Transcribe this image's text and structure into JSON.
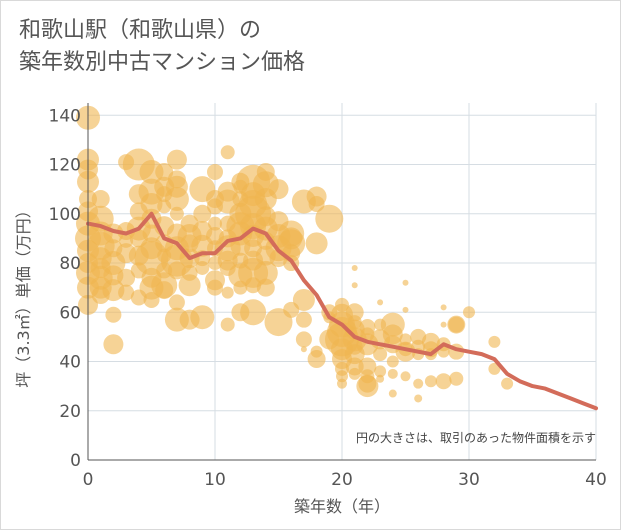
{
  "header": {
    "title_line1": "和歌山駅（和歌山県）の",
    "title_line2": "築年数別中古マンション価格"
  },
  "chart_data": {
    "type": "scatter",
    "title": "和歌山駅（和歌山県）の 築年数別中古マンション価格",
    "xlabel": "築年数（年）",
    "ylabel": "坪（3.3㎡）単価（万円）",
    "xlim": [
      0,
      40
    ],
    "ylim": [
      0,
      145
    ],
    "xticks": [
      0,
      10,
      20,
      30,
      40
    ],
    "yticks": [
      0,
      20,
      40,
      60,
      80,
      100,
      120,
      140
    ],
    "grid": true,
    "note": "円の大きさは、取引のあった物件面積を示す",
    "bubble_color": "#f0b650",
    "line_color": "#d36c5a",
    "bubbles": [
      [
        0,
        139,
        12
      ],
      [
        0,
        122,
        11
      ],
      [
        0,
        118,
        10
      ],
      [
        0,
        113,
        11
      ],
      [
        0,
        106,
        9
      ],
      [
        0,
        101,
        10
      ],
      [
        0,
        96,
        12
      ],
      [
        0,
        90,
        13
      ],
      [
        0,
        85,
        11
      ],
      [
        0,
        80,
        10
      ],
      [
        0,
        76,
        12
      ],
      [
        0,
        70,
        11
      ],
      [
        0,
        63,
        10
      ],
      [
        1,
        98,
        13
      ],
      [
        1,
        92,
        12
      ],
      [
        1,
        87,
        14
      ],
      [
        1,
        82,
        11
      ],
      [
        1,
        78,
        10
      ],
      [
        1,
        74,
        12
      ],
      [
        1,
        70,
        11
      ],
      [
        1,
        67,
        9
      ],
      [
        1,
        106,
        9
      ],
      [
        2,
        92,
        10
      ],
      [
        2,
        86,
        9
      ],
      [
        2,
        80,
        12
      ],
      [
        2,
        75,
        10
      ],
      [
        2,
        69,
        11
      ],
      [
        2,
        59,
        8
      ],
      [
        2,
        47,
        10
      ],
      [
        3,
        121,
        8
      ],
      [
        3,
        93,
        9
      ],
      [
        3,
        89,
        7
      ],
      [
        3,
        84,
        10
      ],
      [
        3,
        74,
        9
      ],
      [
        3,
        68,
        8
      ],
      [
        4,
        120,
        16
      ],
      [
        4,
        108,
        10
      ],
      [
        4,
        101,
        9
      ],
      [
        4,
        94,
        12
      ],
      [
        4,
        90,
        9
      ],
      [
        4,
        83,
        10
      ],
      [
        4,
        77,
        8
      ],
      [
        4,
        66,
        8
      ],
      [
        5,
        117,
        12
      ],
      [
        5,
        109,
        13
      ],
      [
        5,
        104,
        11
      ],
      [
        5,
        98,
        10
      ],
      [
        5,
        92,
        9
      ],
      [
        5,
        86,
        11
      ],
      [
        5,
        82,
        17
      ],
      [
        5,
        74,
        10
      ],
      [
        5,
        70,
        12
      ],
      [
        5,
        65,
        8
      ],
      [
        6,
        117,
        9
      ],
      [
        6,
        111,
        10
      ],
      [
        6,
        108,
        8
      ],
      [
        6,
        103,
        7
      ],
      [
        6,
        95,
        10
      ],
      [
        6,
        88,
        9
      ],
      [
        6,
        83,
        7
      ],
      [
        6,
        77,
        8
      ],
      [
        6,
        71,
        13
      ],
      [
        6,
        69,
        9
      ],
      [
        7,
        122,
        10
      ],
      [
        7,
        114,
        9
      ],
      [
        7,
        111,
        11
      ],
      [
        7,
        106,
        12
      ],
      [
        7,
        100,
        7
      ],
      [
        7,
        92,
        10
      ],
      [
        7,
        86,
        12
      ],
      [
        7,
        81,
        16
      ],
      [
        7,
        77,
        9
      ],
      [
        7,
        64,
        8
      ],
      [
        7,
        57,
        12
      ],
      [
        8,
        96,
        9
      ],
      [
        8,
        91,
        12
      ],
      [
        8,
        88,
        9
      ],
      [
        8,
        82,
        10
      ],
      [
        8,
        76,
        8
      ],
      [
        8,
        71,
        11
      ],
      [
        8,
        57,
        10
      ],
      [
        9,
        110,
        13
      ],
      [
        9,
        100,
        9
      ],
      [
        9,
        93,
        10
      ],
      [
        9,
        87,
        11
      ],
      [
        9,
        82,
        8
      ],
      [
        9,
        78,
        7
      ],
      [
        9,
        58,
        12
      ],
      [
        10,
        117,
        8
      ],
      [
        10,
        106,
        9
      ],
      [
        10,
        103,
        8
      ],
      [
        10,
        96,
        7
      ],
      [
        10,
        91,
        9
      ],
      [
        10,
        86,
        8
      ],
      [
        10,
        80,
        7
      ],
      [
        10,
        73,
        10
      ],
      [
        10,
        70,
        8
      ],
      [
        11,
        125,
        7
      ],
      [
        11,
        109,
        10
      ],
      [
        11,
        105,
        12
      ],
      [
        11,
        96,
        8
      ],
      [
        11,
        90,
        9
      ],
      [
        11,
        86,
        13
      ],
      [
        11,
        81,
        10
      ],
      [
        11,
        78,
        8
      ],
      [
        11,
        68,
        6
      ],
      [
        11,
        55,
        7
      ],
      [
        12,
        113,
        9
      ],
      [
        12,
        111,
        7
      ],
      [
        12,
        106,
        8
      ],
      [
        12,
        100,
        11
      ],
      [
        12,
        95,
        14
      ],
      [
        12,
        92,
        12
      ],
      [
        12,
        87,
        10
      ],
      [
        12,
        81,
        8
      ],
      [
        12,
        75,
        12
      ],
      [
        12,
        70,
        7
      ],
      [
        12,
        60,
        9
      ],
      [
        13,
        113,
        17
      ],
      [
        13,
        108,
        12
      ],
      [
        13,
        104,
        14
      ],
      [
        13,
        100,
        18
      ],
      [
        13,
        95,
        13
      ],
      [
        13,
        91,
        11
      ],
      [
        13,
        86,
        9
      ],
      [
        13,
        81,
        10
      ],
      [
        13,
        76,
        15
      ],
      [
        13,
        71,
        8
      ],
      [
        13,
        60,
        13
      ],
      [
        14,
        117,
        9
      ],
      [
        14,
        112,
        13
      ],
      [
        14,
        106,
        11
      ],
      [
        14,
        99,
        10
      ],
      [
        14,
        94,
        12
      ],
      [
        14,
        89,
        9
      ],
      [
        14,
        83,
        10
      ],
      [
        14,
        76,
        12
      ],
      [
        14,
        70,
        9
      ],
      [
        15,
        110,
        10
      ],
      [
        15,
        97,
        10
      ],
      [
        15,
        91,
        12
      ],
      [
        15,
        86,
        13
      ],
      [
        15,
        82,
        9
      ],
      [
        15,
        56,
        14
      ],
      [
        16,
        92,
        13
      ],
      [
        16,
        90,
        11
      ],
      [
        16,
        88,
        14
      ],
      [
        16,
        84,
        9
      ],
      [
        16,
        80,
        8
      ],
      [
        16,
        61,
        8
      ],
      [
        17,
        105,
        12
      ],
      [
        17,
        65,
        11
      ],
      [
        17,
        57,
        8
      ],
      [
        17,
        49,
        8
      ],
      [
        17,
        45,
        3
      ],
      [
        18,
        107,
        10
      ],
      [
        18,
        104,
        8
      ],
      [
        18,
        88,
        11
      ],
      [
        18,
        44,
        6
      ],
      [
        18,
        41,
        9
      ],
      [
        19,
        98,
        14
      ],
      [
        19,
        60,
        8
      ],
      [
        19,
        58,
        6
      ],
      [
        19,
        49,
        10
      ],
      [
        20,
        63,
        7
      ],
      [
        20,
        59,
        11
      ],
      [
        20,
        55,
        13
      ],
      [
        20,
        52,
        15
      ],
      [
        20,
        49,
        17
      ],
      [
        20,
        45,
        11
      ],
      [
        20,
        41,
        10
      ],
      [
        20,
        37,
        7
      ],
      [
        20,
        34,
        6
      ],
      [
        20,
        31,
        5
      ],
      [
        21,
        78,
        3
      ],
      [
        21,
        71,
        3
      ],
      [
        21,
        60,
        9
      ],
      [
        21,
        56,
        7
      ],
      [
        21,
        53,
        10
      ],
      [
        21,
        49,
        12
      ],
      [
        21,
        46,
        8
      ],
      [
        21,
        43,
        10
      ],
      [
        21,
        38,
        9
      ],
      [
        21,
        35,
        6
      ],
      [
        22,
        54,
        8
      ],
      [
        22,
        51,
        7
      ],
      [
        22,
        47,
        11
      ],
      [
        22,
        38,
        9
      ],
      [
        22,
        34,
        7
      ],
      [
        22,
        31,
        9
      ],
      [
        22,
        30,
        11
      ],
      [
        23,
        64,
        3
      ],
      [
        23,
        55,
        6
      ],
      [
        23,
        49,
        10
      ],
      [
        23,
        43,
        7
      ],
      [
        23,
        36,
        6
      ],
      [
        23,
        33,
        4
      ],
      [
        24,
        55,
        12
      ],
      [
        24,
        51,
        10
      ],
      [
        24,
        47,
        9
      ],
      [
        24,
        40,
        6
      ],
      [
        24,
        35,
        5
      ],
      [
        24,
        27,
        4
      ],
      [
        25,
        72,
        3
      ],
      [
        25,
        61,
        3
      ],
      [
        25,
        49,
        6
      ],
      [
        25,
        45,
        7
      ],
      [
        25,
        44,
        10
      ],
      [
        25,
        34,
        5
      ],
      [
        26,
        50,
        8
      ],
      [
        26,
        46,
        7
      ],
      [
        26,
        43,
        6
      ],
      [
        26,
        31,
        5
      ],
      [
        26,
        25,
        4
      ],
      [
        27,
        48,
        9
      ],
      [
        27,
        45,
        8
      ],
      [
        27,
        43,
        6
      ],
      [
        27,
        32,
        6
      ],
      [
        28,
        62,
        3
      ],
      [
        28,
        55,
        3
      ],
      [
        28,
        47,
        7
      ],
      [
        28,
        44,
        6
      ],
      [
        28,
        32,
        8
      ],
      [
        29,
        55,
        9
      ],
      [
        29,
        55,
        8
      ],
      [
        29,
        44,
        8
      ],
      [
        29,
        33,
        7
      ],
      [
        30,
        60,
        6
      ],
      [
        32,
        48,
        6
      ],
      [
        32,
        37,
        6
      ],
      [
        33,
        31,
        6
      ]
    ],
    "trend": {
      "x": [
        0,
        1,
        2,
        3,
        4,
        5,
        6,
        7,
        8,
        9,
        10,
        11,
        12,
        13,
        14,
        15,
        16,
        17,
        18,
        19,
        20,
        21,
        22,
        23,
        24,
        25,
        26,
        27,
        28,
        29,
        30,
        31,
        32,
        33,
        34,
        35,
        36,
        37,
        38,
        39,
        40
      ],
      "y": [
        96,
        95,
        93,
        92,
        94,
        100,
        90,
        88,
        82,
        84,
        84,
        89,
        90,
        94,
        92,
        85,
        81,
        73,
        67,
        58,
        55,
        50,
        48,
        47,
        46,
        45,
        44,
        43,
        47,
        45,
        44,
        43,
        41,
        35,
        32,
        30,
        29,
        27,
        25,
        23,
        21
      ]
    }
  }
}
